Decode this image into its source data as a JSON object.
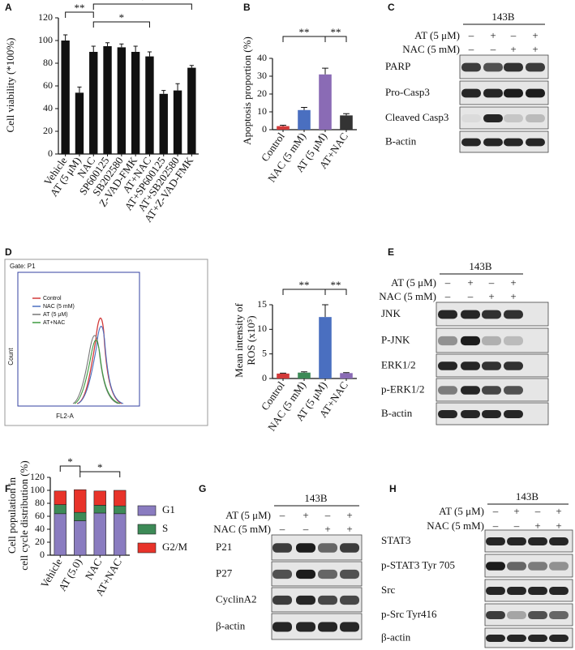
{
  "chart_data": [
    {
      "panel": "A",
      "type": "bar",
      "ylabel": [
        "Cell viability (*100%)"
      ],
      "categories": [
        "Vehicle",
        "AT (5 μM)",
        "NAC",
        "SP600125",
        "SB202580",
        "Z-VAD-FMK",
        "AT+NAC",
        "AT+SP600125",
        "AT+SB202580",
        "AT+Z-VAD-FMK"
      ],
      "values": [
        100,
        54,
        90,
        95,
        94,
        90,
        86,
        53,
        56,
        76
      ],
      "errors": [
        5,
        5,
        5,
        3,
        3,
        5,
        4,
        3,
        6,
        2
      ],
      "colors": [
        "#111111",
        "#111111",
        "#111111",
        "#111111",
        "#111111",
        "#111111",
        "#111111",
        "#111111",
        "#111111",
        "#111111"
      ],
      "ylim": [
        0,
        120
      ],
      "yticks": [
        0,
        20,
        40,
        60,
        80,
        100,
        120
      ],
      "annotations": [
        "**",
        "*",
        "*"
      ]
    },
    {
      "panel": "B",
      "type": "bar",
      "ylabel": [
        "Apoptosis proportion (%)"
      ],
      "categories": [
        "Control",
        "NAC (5 mM)",
        "AT (5 μM)",
        "AT+NAC"
      ],
      "values": [
        2,
        11,
        31,
        8
      ],
      "errors": [
        0.5,
        1.5,
        3.5,
        1
      ],
      "colors": [
        "#d23a3a",
        "#4a6fc0",
        "#8a6bb5",
        "#333333"
      ],
      "ylim": [
        0,
        40
      ],
      "yticks": [
        0,
        10,
        20,
        30,
        40
      ],
      "annotations": [
        "**",
        "**"
      ]
    },
    {
      "type": "bar",
      "ylabel": [
        "Mean intensity of",
        "ROS (x10⁵)"
      ],
      "categories": [
        "Control",
        "NAC (5 mM)",
        "AT (5 μM)",
        "AT+NAC"
      ],
      "values": [
        1,
        1.2,
        12.5,
        1.1
      ],
      "errors": [
        0.1,
        0.15,
        2.5,
        0.1
      ],
      "colors": [
        "#d23a3a",
        "#3d8a57",
        "#4a6fc0",
        "#8a6bb5"
      ],
      "ylim": [
        0,
        15
      ],
      "yticks": [
        0,
        5,
        10,
        15
      ],
      "annotations": [
        "**",
        "**"
      ]
    },
    {
      "panel": "F",
      "type": "stacked_bar",
      "ylabel": [
        "Cell population in",
        "cell cycle distribution (%)"
      ],
      "categories": [
        "Vehicle",
        "AT (5.0)",
        "NAC",
        "AT+NAC"
      ],
      "series": [
        {
          "name": "G1",
          "color": "#8a7cc0",
          "values": [
            64,
            53,
            65,
            64
          ]
        },
        {
          "name": "S",
          "color": "#3d8a57",
          "values": [
            14,
            13,
            12,
            12
          ]
        },
        {
          "name": "G2/M",
          "color": "#e8332a",
          "values": [
            21,
            35,
            22,
            24
          ]
        }
      ],
      "ylim": [
        0,
        120
      ],
      "yticks": [
        0,
        20,
        40,
        60,
        80,
        100,
        120
      ],
      "annotations": [
        "*",
        "*"
      ]
    }
  ],
  "flow": {
    "panel": "D",
    "gate": "Gate: P1",
    "ylabel": "Count",
    "xlabel": "FL2-A",
    "legend": [
      {
        "name": "Control",
        "color": "#d23a3a"
      },
      {
        "name": "NAC (5 mM)",
        "color": "#4a6fc0"
      },
      {
        "name": "AT (5 μM)",
        "color": "#777777"
      },
      {
        "name": "AT+NAC",
        "color": "#3d9a40"
      }
    ]
  },
  "blots": [
    {
      "panel": "C",
      "cell_line": "143B",
      "treatments": [
        {
          "name": "AT (5 μM)",
          "signs": [
            "–",
            "+",
            "–",
            "+"
          ]
        },
        {
          "name": "NAC (5 mM)",
          "signs": [
            "–",
            "–",
            "+",
            "+"
          ]
        }
      ],
      "proteins": [
        "PARP",
        "Pro-Casp3",
        "Cleaved Casp3",
        "B-actin"
      ]
    },
    {
      "panel": "E",
      "cell_line": "143B",
      "treatments": [
        {
          "name": "AT (5 μM)",
          "signs": [
            "–",
            "+",
            "–",
            "+"
          ]
        },
        {
          "name": "NAC (5 mM)",
          "signs": [
            "–",
            "–",
            "+",
            "+"
          ]
        }
      ],
      "proteins": [
        "JNK",
        "P-JNK",
        "ERK1/2",
        "p-ERK1/2",
        "B-actin"
      ]
    },
    {
      "panel": "G",
      "cell_line": "143B",
      "treatments": [
        {
          "name": "AT (5 μM)",
          "signs": [
            "–",
            "+",
            "–",
            "+"
          ]
        },
        {
          "name": "NAC (5 mM)",
          "signs": [
            "–",
            "–",
            "+",
            "+"
          ]
        }
      ],
      "proteins": [
        "P21",
        "P27",
        "CyclinA2",
        "β-actin"
      ]
    },
    {
      "panel": "H",
      "cell_line": "143B",
      "treatments": [
        {
          "name": "AT (5 μM)",
          "signs": [
            "–",
            "+",
            "–",
            "+"
          ]
        },
        {
          "name": "NAC (5 mM)",
          "signs": [
            "–",
            "–",
            "+",
            "+"
          ]
        }
      ],
      "proteins": [
        "STAT3",
        "p-STAT3 Tyr 705",
        "Src",
        "p-Src Tyr416",
        "β-actin"
      ]
    }
  ]
}
